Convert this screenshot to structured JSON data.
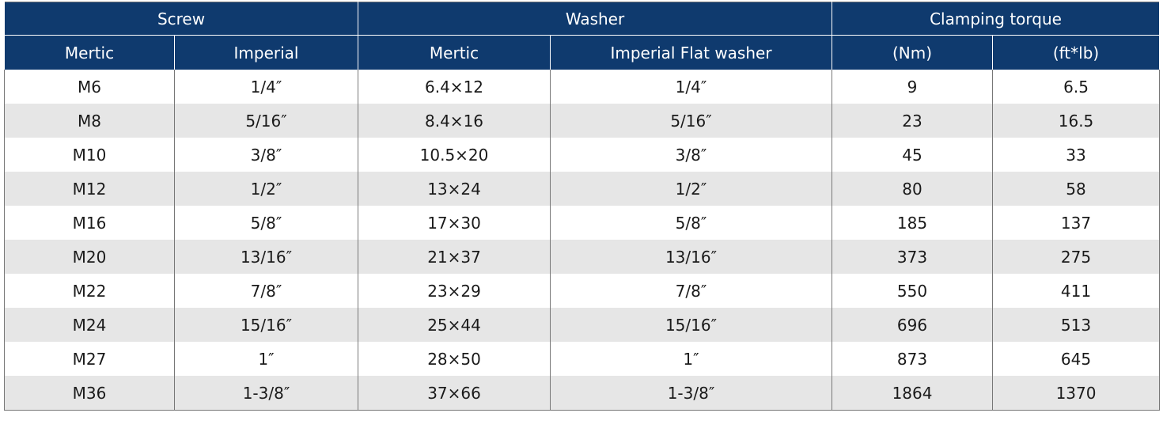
{
  "table": {
    "group_headers": [
      "Screw",
      "Washer",
      "Clamping torque"
    ],
    "headers": [
      "Mertic",
      "Imperial",
      "Mertic",
      "Imperial Flat washer",
      "(Nm)",
      "(ft*lb)"
    ],
    "rows": [
      [
        "M6",
        "1/4″",
        "6.4×12",
        "1/4″",
        9,
        6.5
      ],
      [
        "M8",
        "5/16″",
        "8.4×16",
        "5/16″",
        23,
        16.5
      ],
      [
        "M10",
        "3/8″",
        "10.5×20",
        "3/8″",
        45,
        33
      ],
      [
        "M12",
        "1/2″",
        "13×24",
        "1/2″",
        80,
        58
      ],
      [
        "M16",
        "5/8″",
        "17×30",
        "5/8″",
        185,
        137
      ],
      [
        "M20",
        "13/16″",
        "21×37",
        "13/16″",
        373,
        275
      ],
      [
        "M22",
        "7/8″",
        "23×29",
        "7/8″",
        550,
        411
      ],
      [
        "M24",
        "15/16″",
        "25×44",
        "15/16″",
        696,
        513
      ],
      [
        "M27",
        "1″",
        "28×50",
        "1″",
        873,
        645
      ],
      [
        "M36",
        "1-3/8″",
        "37×66",
        "1-3/8″",
        1864,
        1370
      ]
    ]
  }
}
